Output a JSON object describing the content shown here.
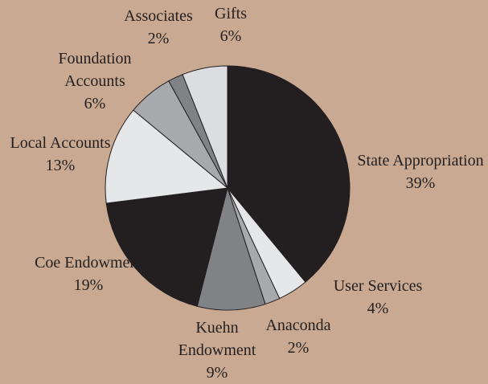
{
  "chart_data": {
    "type": "pie",
    "categories": [
      "State Appropriation",
      "User Services",
      "Anaconda",
      "Kuehn Endowment",
      "Coe Endowment",
      "Local Accounts",
      "Foundation Accounts",
      "Associates",
      "Gifts"
    ],
    "values": [
      39,
      4,
      2,
      9,
      19,
      13,
      6,
      2,
      6
    ],
    "value_labels": [
      "39%",
      "4%",
      "2%",
      "9%",
      "19%",
      "13%",
      "6%",
      "2%",
      "6%"
    ],
    "colors": [
      "#231f20",
      "#e6e7e8",
      "#a7a9ac",
      "#808285",
      "#231f20",
      "#e6e7e8",
      "#a7a9ac",
      "#808285",
      "#dcdde0"
    ]
  }
}
